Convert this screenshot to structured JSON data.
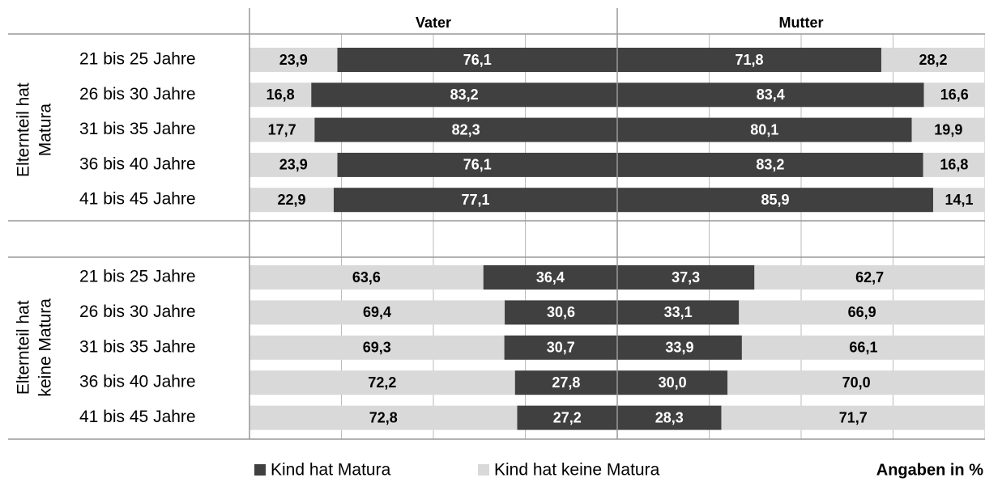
{
  "chart_data": {
    "type": "bar",
    "orientation": "horizontal",
    "stacked": true,
    "panels": [
      "Vater",
      "Mutter"
    ],
    "xlim": [
      0,
      100
    ],
    "xticks": [
      0,
      25,
      50,
      75,
      100
    ],
    "grid": true,
    "note": "Angaben in %",
    "groups": [
      {
        "label": [
          "Elternteil hat",
          "Matura"
        ],
        "categories": [
          "21 bis 25 Jahre",
          "26 bis 30 Jahre",
          "31 bis 35 Jahre",
          "36 bis 40 Jahre",
          "41 bis 45 Jahre"
        ],
        "series": [
          {
            "name": "Kind hat Matura",
            "color": "#404040",
            "values": [
              [
                76.1,
                83.2,
                82.3,
                76.1,
                77.1
              ],
              [
                71.8,
                83.4,
                80.1,
                83.2,
                85.9
              ]
            ],
            "value_labels": [
              [
                "76,1",
                "83,2",
                "82,3",
                "76,1",
                "77,1"
              ],
              [
                "71,8",
                "83,4",
                "80,1",
                "83,2",
                "85,9"
              ]
            ]
          },
          {
            "name": "Kind hat keine Matura",
            "color": "#d9d9d9",
            "values": [
              [
                23.9,
                16.8,
                17.7,
                23.9,
                22.9
              ],
              [
                28.2,
                16.6,
                19.9,
                16.8,
                14.1
              ]
            ],
            "value_labels": [
              [
                "23,9",
                "16,8",
                "17,7",
                "23,9",
                "22,9"
              ],
              [
                "28,2",
                "16,6",
                "19,9",
                "16,8",
                "14,1"
              ]
            ]
          }
        ]
      },
      {
        "label": [
          "Elternteil hat",
          "keine Matura"
        ],
        "categories": [
          "21 bis 25 Jahre",
          "26 bis 30 Jahre",
          "31 bis 35 Jahre",
          "36 bis 40 Jahre",
          "41 bis 45 Jahre"
        ],
        "series": [
          {
            "name": "Kind hat Matura",
            "color": "#404040",
            "values": [
              [
                36.4,
                30.6,
                30.7,
                27.8,
                27.2
              ],
              [
                37.3,
                33.1,
                33.9,
                30.0,
                28.3
              ]
            ],
            "value_labels": [
              [
                "36,4",
                "30,6",
                "30,7",
                "27,8",
                "27,2"
              ],
              [
                "37,3",
                "33,1",
                "33,9",
                "30,0",
                "28,3"
              ]
            ]
          },
          {
            "name": "Kind hat keine Matura",
            "color": "#d9d9d9",
            "values": [
              [
                63.6,
                69.4,
                69.3,
                72.2,
                72.8
              ],
              [
                62.7,
                66.9,
                66.1,
                70.0,
                71.7
              ]
            ],
            "value_labels": [
              [
                "63,6",
                "69,4",
                "69,3",
                "72,2",
                "72,8"
              ],
              [
                "62,7",
                "66,9",
                "66,1",
                "70,0",
                "71,7"
              ]
            ]
          }
        ]
      }
    ]
  }
}
